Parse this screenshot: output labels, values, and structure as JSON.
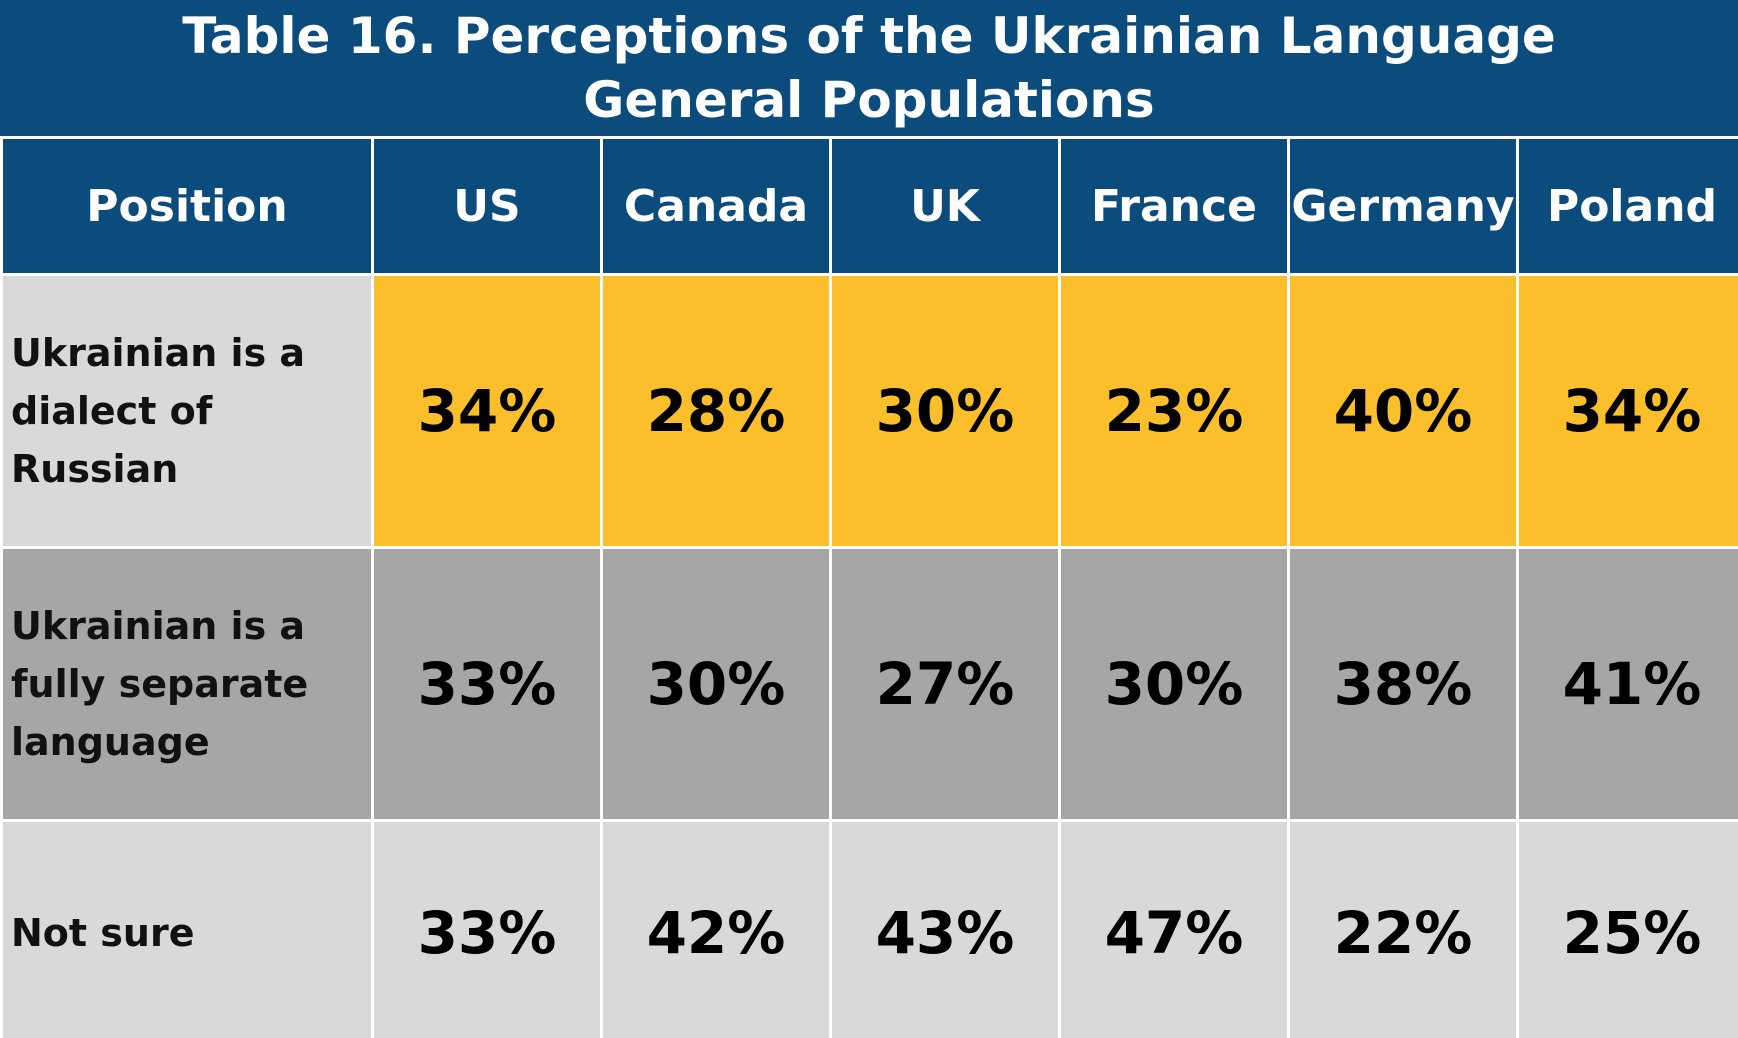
{
  "title_lines": [
    "Table 16. Perceptions of the Ukrainian Language",
    "General Populations"
  ],
  "colors": {
    "header_bg": "#0b4c7c",
    "header_text": "#ffffff",
    "row_bg": [
      "#d9d9d9",
      "#a6a6a6",
      "#d9d9d9"
    ],
    "row_value_bg": [
      "#fbbf2c",
      "#a6a6a6",
      "#d9d9d9"
    ]
  },
  "chart_data": {
    "type": "table",
    "title": "Table 16. Perceptions of the Ukrainian Language General Populations",
    "columns": [
      "Position",
      "US",
      "Canada",
      "UK",
      "France",
      "Germany",
      "Poland"
    ],
    "rows": [
      {
        "label_lines": [
          "Ukrainian is a",
          "dialect of",
          "Russian"
        ],
        "values": [
          "34%",
          "28%",
          "30%",
          "23%",
          "40%",
          "34%"
        ]
      },
      {
        "label_lines": [
          "Ukrainian is a",
          "fully separate",
          "language"
        ],
        "values": [
          "33%",
          "30%",
          "27%",
          "30%",
          "38%",
          "41%"
        ]
      },
      {
        "label_lines": [
          "Not sure"
        ],
        "values": [
          "33%",
          "42%",
          "43%",
          "47%",
          "22%",
          "25%"
        ]
      }
    ]
  }
}
